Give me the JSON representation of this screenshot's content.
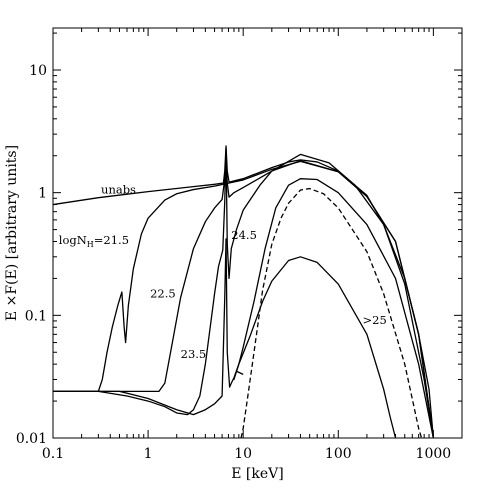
{
  "chart_data": {
    "type": "line",
    "title": "",
    "xlabel": "E [keV]",
    "ylabel": "E ×F(E) [arbitrary units]",
    "xscale": "log",
    "yscale": "log",
    "xlim": [
      0.1,
      2000
    ],
    "ylim": [
      0.01,
      22
    ],
    "grid": false,
    "legend": "none",
    "x_ticks": [
      {
        "value": 0.1,
        "label": "0.1"
      },
      {
        "value": 1,
        "label": "1"
      },
      {
        "value": 10,
        "label": "10"
      },
      {
        "value": 100,
        "label": "100"
      },
      {
        "value": 1000,
        "label": "1000"
      }
    ],
    "y_ticks": [
      {
        "value": 0.01,
        "label": "0.01"
      },
      {
        "value": 0.1,
        "label": "0.1"
      },
      {
        "value": 1,
        "label": "1"
      },
      {
        "value": 10,
        "label": "10"
      }
    ],
    "annotations": [
      {
        "key": "unabs",
        "text": "unabs",
        "x": 0.32,
        "y": 0.98
      },
      {
        "key": "nh215",
        "text": "logN",
        "sub": "H",
        "suffix": "=21.5",
        "x": 0.115,
        "y": 0.38
      },
      {
        "key": "nh225",
        "text": "22.5",
        "x": 1.05,
        "y": 0.14
      },
      {
        "key": "nh235",
        "text": "23.5",
        "x": 2.2,
        "y": 0.045
      },
      {
        "key": "nh245",
        "text": "24.5",
        "x": 7.5,
        "y": 0.42
      },
      {
        "key": "gt25",
        "text": ">25",
        "x": 180,
        "y": 0.085
      }
    ],
    "series": [
      {
        "key": "unabs",
        "dash": false,
        "points": [
          [
            0.1,
            0.8
          ],
          [
            0.3,
            0.91
          ],
          [
            1,
            1.02
          ],
          [
            3,
            1.12
          ],
          [
            5,
            1.17
          ],
          [
            6.2,
            1.2
          ],
          [
            6.4,
            1.5
          ],
          [
            6.6,
            2.4
          ],
          [
            6.8,
            1.5
          ],
          [
            7.1,
            1.22
          ],
          [
            10,
            1.3
          ],
          [
            20,
            1.6
          ],
          [
            30,
            1.78
          ],
          [
            40,
            1.85
          ],
          [
            60,
            1.78
          ],
          [
            100,
            1.5
          ],
          [
            200,
            0.95
          ],
          [
            300,
            0.55
          ],
          [
            500,
            0.2
          ],
          [
            700,
            0.07
          ],
          [
            900,
            0.025
          ],
          [
            1000,
            0.01
          ]
        ]
      },
      {
        "key": "nh215",
        "dash": false,
        "points": [
          [
            0.1,
            0.024
          ],
          [
            0.2,
            0.024
          ],
          [
            0.3,
            0.024
          ],
          [
            0.33,
            0.03
          ],
          [
            0.37,
            0.05
          ],
          [
            0.42,
            0.08
          ],
          [
            0.48,
            0.12
          ],
          [
            0.53,
            0.155
          ],
          [
            0.56,
            0.08
          ],
          [
            0.58,
            0.06
          ],
          [
            0.62,
            0.12
          ],
          [
            0.7,
            0.24
          ],
          [
            0.85,
            0.46
          ],
          [
            1,
            0.62
          ],
          [
            1.5,
            0.87
          ],
          [
            2,
            0.98
          ],
          [
            3,
            1.06
          ],
          [
            5,
            1.13
          ],
          [
            10,
            1.27
          ],
          [
            20,
            1.55
          ],
          [
            40,
            1.8
          ],
          [
            100,
            1.48
          ],
          [
            200,
            0.93
          ],
          [
            400,
            0.4
          ],
          [
            700,
            0.07
          ],
          [
            1000,
            0.01
          ]
        ]
      },
      {
        "key": "nh225",
        "dash": false,
        "points": [
          [
            0.1,
            0.024
          ],
          [
            0.5,
            0.024
          ],
          [
            0.9,
            0.024
          ],
          [
            1.3,
            0.024
          ],
          [
            1.5,
            0.028
          ],
          [
            1.8,
            0.06
          ],
          [
            2.2,
            0.14
          ],
          [
            3,
            0.35
          ],
          [
            4,
            0.58
          ],
          [
            5,
            0.75
          ],
          [
            6,
            0.88
          ],
          [
            6.4,
            1.3
          ],
          [
            6.6,
            2.1
          ],
          [
            6.8,
            1.2
          ],
          [
            7.1,
            0.92
          ],
          [
            8,
            1.0
          ],
          [
            10,
            1.1
          ],
          [
            20,
            1.5
          ],
          [
            40,
            1.82
          ],
          [
            100,
            1.48
          ],
          [
            200,
            0.93
          ],
          [
            400,
            0.4
          ],
          [
            700,
            0.07
          ],
          [
            1000,
            0.01
          ]
        ]
      },
      {
        "key": "nh235",
        "dash": false,
        "points": [
          [
            0.1,
            0.024
          ],
          [
            0.3,
            0.024
          ],
          [
            0.6,
            0.022
          ],
          [
            1,
            0.02
          ],
          [
            1.5,
            0.018
          ],
          [
            2,
            0.016
          ],
          [
            2.6,
            0.0155
          ],
          [
            3,
            0.017
          ],
          [
            3.5,
            0.022
          ],
          [
            4,
            0.04
          ],
          [
            4.5,
            0.08
          ],
          [
            5,
            0.15
          ],
          [
            5.5,
            0.25
          ],
          [
            6.1,
            0.34
          ],
          [
            6.4,
            0.85
          ],
          [
            6.6,
            2.3
          ],
          [
            6.8,
            0.38
          ],
          [
            7.1,
            0.2
          ],
          [
            7.5,
            0.35
          ],
          [
            8.5,
            0.5
          ],
          [
            10,
            0.72
          ],
          [
            15,
            1.15
          ],
          [
            20,
            1.5
          ],
          [
            40,
            2.05
          ],
          [
            80,
            1.75
          ],
          [
            150,
            1.15
          ],
          [
            300,
            0.55
          ],
          [
            500,
            0.18
          ],
          [
            800,
            0.03
          ],
          [
            1000,
            0.01
          ]
        ]
      },
      {
        "key": "nh245",
        "dash": false,
        "points": [
          [
            0.1,
            0.024
          ],
          [
            0.5,
            0.024
          ],
          [
            1,
            0.021
          ],
          [
            2,
            0.017
          ],
          [
            3,
            0.0155
          ],
          [
            4,
            0.017
          ],
          [
            5,
            0.019
          ],
          [
            6,
            0.022
          ],
          [
            6.4,
            0.14
          ],
          [
            6.6,
            0.42
          ],
          [
            6.8,
            0.05
          ],
          [
            7.2,
            0.026
          ],
          [
            7.5,
            0.028
          ],
          [
            8,
            0.031
          ],
          [
            9,
            0.04
          ],
          [
            10,
            0.055
          ],
          [
            13,
            0.13
          ],
          [
            17,
            0.35
          ],
          [
            22,
            0.75
          ],
          [
            30,
            1.15
          ],
          [
            40,
            1.3
          ],
          [
            60,
            1.28
          ],
          [
            100,
            1.0
          ],
          [
            200,
            0.55
          ],
          [
            400,
            0.2
          ],
          [
            700,
            0.04
          ],
          [
            900,
            0.015
          ],
          [
            1000,
            0.01
          ]
        ]
      },
      {
        "key": "dashed",
        "dash": true,
        "points": [
          [
            9.5,
            0.01
          ],
          [
            10,
            0.012
          ],
          [
            11,
            0.02
          ],
          [
            13,
            0.05
          ],
          [
            16,
            0.16
          ],
          [
            20,
            0.38
          ],
          [
            25,
            0.62
          ],
          [
            30,
            0.82
          ],
          [
            40,
            1.05
          ],
          [
            50,
            1.08
          ],
          [
            70,
            0.98
          ],
          [
            100,
            0.75
          ],
          [
            200,
            0.33
          ],
          [
            300,
            0.15
          ],
          [
            500,
            0.04
          ],
          [
            700,
            0.012
          ],
          [
            750,
            0.01
          ]
        ]
      },
      {
        "key": "gt25",
        "dash": false,
        "points": [
          [
            10,
            0.033
          ],
          [
            8.5,
            0.035
          ],
          [
            8,
            0.03
          ],
          [
            9,
            0.04
          ],
          [
            12,
            0.07
          ],
          [
            16,
            0.13
          ],
          [
            20,
            0.19
          ],
          [
            30,
            0.28
          ],
          [
            40,
            0.3
          ],
          [
            60,
            0.27
          ],
          [
            100,
            0.18
          ],
          [
            200,
            0.07
          ],
          [
            300,
            0.025
          ],
          [
            350,
            0.015
          ],
          [
            400,
            0.01
          ]
        ]
      }
    ]
  }
}
